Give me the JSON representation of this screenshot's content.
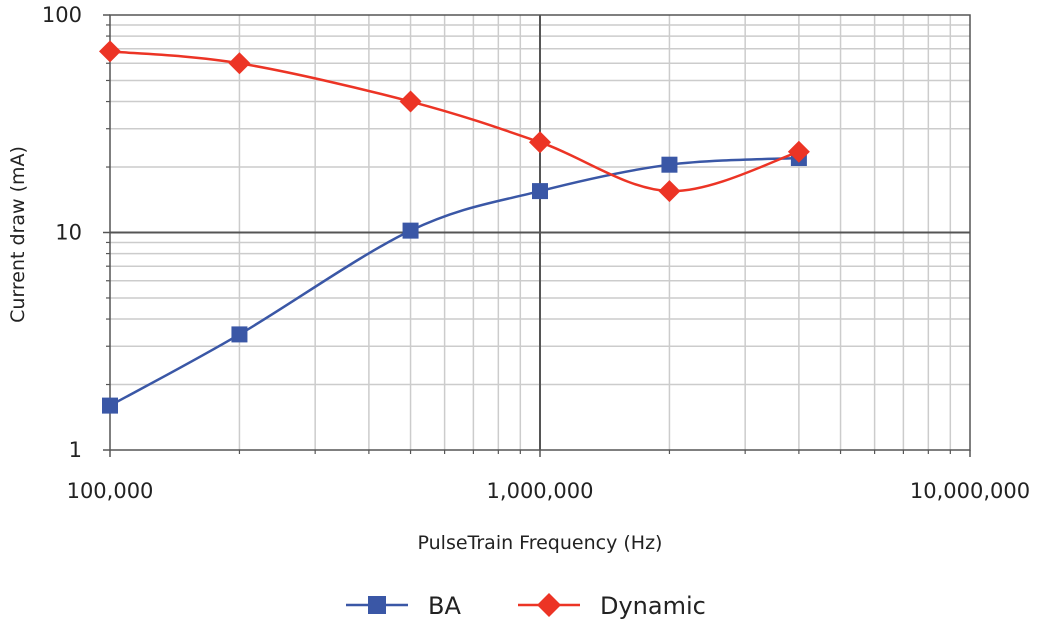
{
  "chart_data": {
    "type": "line",
    "title": "",
    "xlabel": "PulseTrain Frequency (Hz)",
    "ylabel": "Current draw (mA)",
    "x_scale": "log",
    "y_scale": "log",
    "xlim": [
      100000,
      10000000
    ],
    "ylim": [
      1,
      100
    ],
    "x_ticks": [
      {
        "value": 100000,
        "label": "100,000"
      },
      {
        "value": 1000000,
        "label": "1,000,000"
      },
      {
        "value": 10000000,
        "label": "10,000,000"
      }
    ],
    "y_ticks": [
      {
        "value": 1,
        "label": "1"
      },
      {
        "value": 10,
        "label": "10"
      },
      {
        "value": 100,
        "label": "100"
      }
    ],
    "grid": true,
    "legend_position": "bottom",
    "series": [
      {
        "name": "BA",
        "color": "#3a57a6",
        "marker": "square",
        "x": [
          100000,
          200000,
          500000,
          1000000,
          2000000,
          4000000
        ],
        "y": [
          1.6,
          3.4,
          10.2,
          15.5,
          20.5,
          22.0
        ]
      },
      {
        "name": "Dynamic",
        "color": "#ec3425",
        "marker": "diamond",
        "x": [
          100000,
          200000,
          500000,
          1000000,
          2000000,
          4000000
        ],
        "y": [
          68,
          60,
          40,
          26,
          15.5,
          23.5
        ]
      }
    ]
  }
}
